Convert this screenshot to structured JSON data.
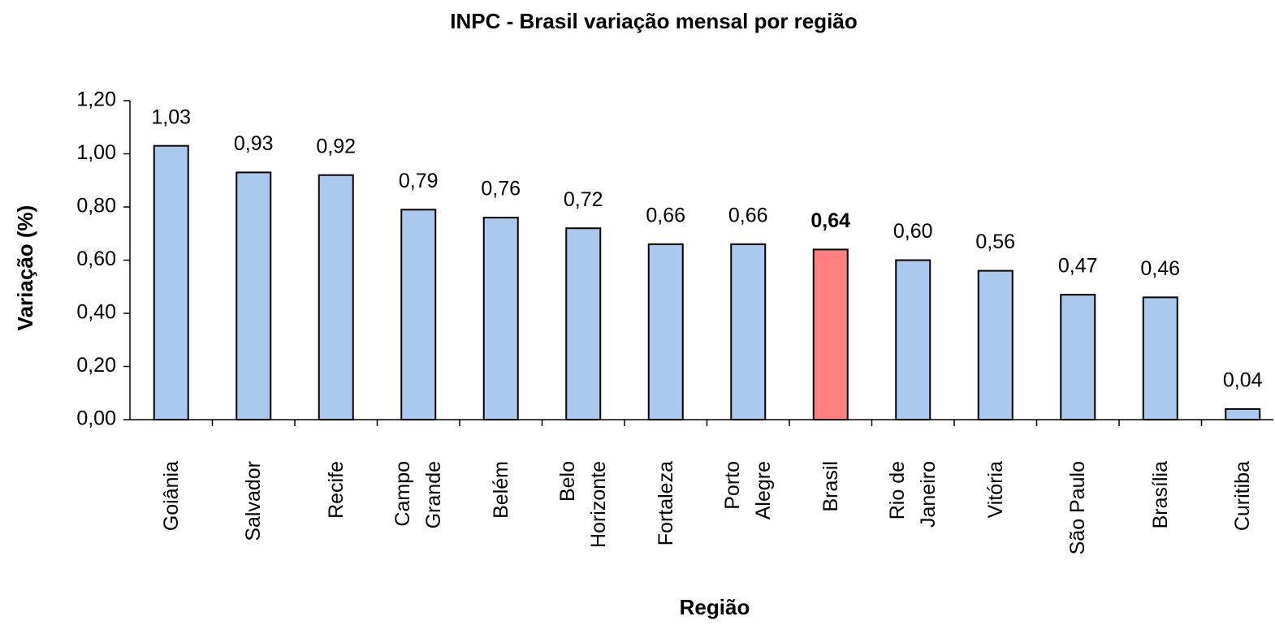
{
  "chart_data": {
    "type": "bar",
    "title": "INPC - Brasil variação mensal por região",
    "x_label": "Região",
    "y_label": "Variação (%)",
    "categories": [
      "Goiânia",
      "Salvador",
      "Recife",
      "Campo\nGrande",
      "Belém",
      "Belo\nHorizonte",
      "Fortaleza",
      "Porto\nAlegre",
      "Brasil",
      "Rio de\nJaneiro",
      "Vitória",
      "São Paulo",
      "Brasília",
      "Curitiba"
    ],
    "values": [
      1.03,
      0.93,
      0.92,
      0.79,
      0.76,
      0.72,
      0.66,
      0.66,
      0.64,
      0.6,
      0.56,
      0.47,
      0.46,
      0.04
    ],
    "value_labels": [
      "1,03",
      "0,93",
      "0,92",
      "0,79",
      "0,76",
      "0,72",
      "0,66",
      "0,66",
      "0,64",
      "0,60",
      "0,56",
      "0,47",
      "0,46",
      "0,04"
    ],
    "color": "#a9c9ef",
    "colors": [
      "#a9c9ef",
      "#a9c9ef",
      "#a9c9ef",
      "#a9c9ef",
      "#a9c9ef",
      "#a9c9ef",
      "#a9c9ef",
      "#a9c9ef",
      "#ff7f7f",
      "#a9c9ef",
      "#a9c9ef",
      "#a9c9ef",
      "#a9c9ef",
      "#a9c9ef"
    ],
    "ylim": [
      0,
      1.2
    ],
    "yticks": [
      {
        "value": 0,
        "label": "0,00"
      },
      {
        "value": 0.2,
        "label": "0,20"
      },
      {
        "value": 0.4,
        "label": "0,40"
      },
      {
        "value": 0.6,
        "label": "0,60"
      },
      {
        "value": 0.8,
        "label": "0,80"
      },
      {
        "value": 1.0,
        "label": "1,00"
      },
      {
        "value": 1.2,
        "label": "1,20"
      }
    ],
    "grid": false
  }
}
